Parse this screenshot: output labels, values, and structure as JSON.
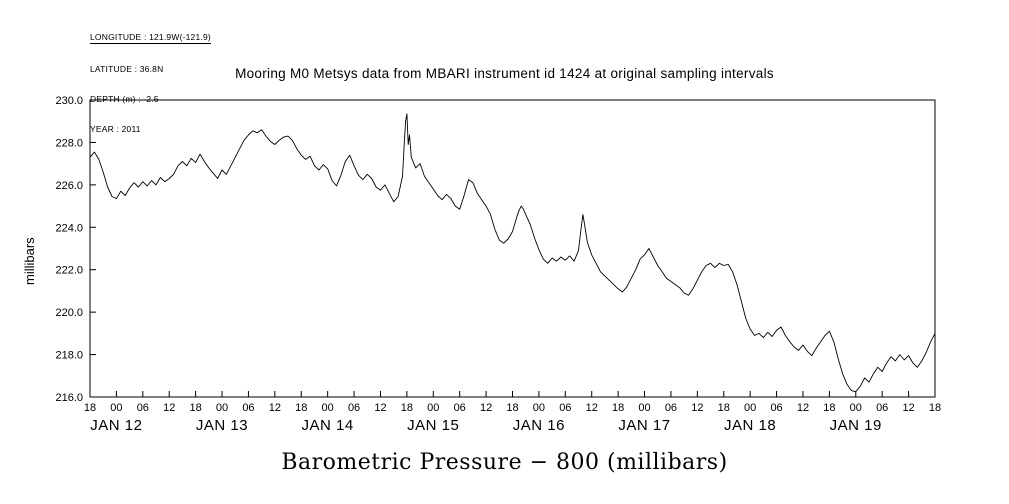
{
  "meta": {
    "longitude": "LONGITUDE : 121.9W(-121.9)",
    "latitude": "LATITUDE : 36.8N",
    "depth": "DEPTH (m) : -2.5",
    "year": "YEAR : 2011"
  },
  "chart_data": {
    "type": "line",
    "title": "Mooring M0 Metsys data from MBARI instrument id 1424 at original sampling intervals",
    "xlabel": "Barometric Pressure − 800 (millibars)",
    "ylabel": "millibars",
    "ylim": [
      216,
      230
    ],
    "xlim_hours": [
      0,
      192
    ],
    "grid": false,
    "legend": "none",
    "line_color": "#000000",
    "y_ticks": [
      230,
      228,
      226,
      224,
      222,
      220,
      218,
      216
    ],
    "y_tick_labels": [
      "230.0",
      "228.0",
      "226.0",
      "224.0",
      "222.0",
      "220.0",
      "218.0",
      "216.0"
    ],
    "x_tick_interval_hours": 6,
    "x_tick_labels": [
      "18",
      "00",
      "06",
      "12",
      "18",
      "00",
      "06",
      "12",
      "18",
      "00",
      "06",
      "12",
      "18",
      "00",
      "06",
      "12",
      "18",
      "00",
      "06",
      "12",
      "18",
      "00",
      "06",
      "12",
      "18",
      "00",
      "06",
      "12",
      "18",
      "00",
      "06",
      "12",
      "18"
    ],
    "day_labels": [
      {
        "label": "JAN 12",
        "hour": 6
      },
      {
        "label": "JAN 13",
        "hour": 30
      },
      {
        "label": "JAN 14",
        "hour": 54
      },
      {
        "label": "JAN 15",
        "hour": 78
      },
      {
        "label": "JAN 16",
        "hour": 102
      },
      {
        "label": "JAN 17",
        "hour": 126
      },
      {
        "label": "JAN 18",
        "hour": 150
      },
      {
        "label": "JAN 19",
        "hour": 174
      }
    ],
    "points": [
      [
        0,
        227.3
      ],
      [
        1,
        227.55
      ],
      [
        2,
        227.2
      ],
      [
        3,
        226.6
      ],
      [
        4,
        225.9
      ],
      [
        5,
        225.45
      ],
      [
        6,
        225.35
      ],
      [
        7,
        225.7
      ],
      [
        8,
        225.5
      ],
      [
        9,
        225.85
      ],
      [
        10,
        226.1
      ],
      [
        11,
        225.9
      ],
      [
        12,
        226.15
      ],
      [
        13,
        225.95
      ],
      [
        14,
        226.2
      ],
      [
        15,
        226.0
      ],
      [
        16,
        226.35
      ],
      [
        17,
        226.15
      ],
      [
        18,
        226.3
      ],
      [
        19,
        226.5
      ],
      [
        20,
        226.9
      ],
      [
        21,
        227.1
      ],
      [
        22,
        226.9
      ],
      [
        23,
        227.25
      ],
      [
        24,
        227.05
      ],
      [
        25,
        227.45
      ],
      [
        26,
        227.1
      ],
      [
        27,
        226.8
      ],
      [
        28,
        226.55
      ],
      [
        29,
        226.3
      ],
      [
        30,
        226.7
      ],
      [
        31,
        226.5
      ],
      [
        32,
        226.9
      ],
      [
        33,
        227.3
      ],
      [
        34,
        227.7
      ],
      [
        35,
        228.1
      ],
      [
        36,
        228.35
      ],
      [
        37,
        228.55
      ],
      [
        38,
        228.45
      ],
      [
        39,
        228.6
      ],
      [
        40,
        228.3
      ],
      [
        41,
        228.05
      ],
      [
        42,
        227.9
      ],
      [
        43,
        228.1
      ],
      [
        44,
        228.25
      ],
      [
        45,
        228.3
      ],
      [
        46,
        228.1
      ],
      [
        47,
        227.7
      ],
      [
        48,
        227.4
      ],
      [
        49,
        227.2
      ],
      [
        50,
        227.35
      ],
      [
        51,
        226.9
      ],
      [
        52,
        226.7
      ],
      [
        53,
        226.95
      ],
      [
        54,
        226.75
      ],
      [
        55,
        226.2
      ],
      [
        56,
        225.95
      ],
      [
        57,
        226.45
      ],
      [
        58,
        227.1
      ],
      [
        59,
        227.4
      ],
      [
        60,
        226.9
      ],
      [
        61,
        226.45
      ],
      [
        62,
        226.25
      ],
      [
        63,
        226.5
      ],
      [
        64,
        226.3
      ],
      [
        65,
        225.9
      ],
      [
        66,
        225.75
      ],
      [
        67,
        226.0
      ],
      [
        68,
        225.6
      ],
      [
        69,
        225.2
      ],
      [
        70,
        225.45
      ],
      [
        71,
        226.4
      ],
      [
        71.4,
        227.9
      ],
      [
        71.7,
        229.0
      ],
      [
        72,
        229.35
      ],
      [
        72.3,
        227.9
      ],
      [
        72.6,
        228.35
      ],
      [
        73,
        227.3
      ],
      [
        74,
        226.8
      ],
      [
        75,
        227.0
      ],
      [
        76,
        226.4
      ],
      [
        77,
        226.1
      ],
      [
        78,
        225.8
      ],
      [
        79,
        225.5
      ],
      [
        80,
        225.3
      ],
      [
        81,
        225.55
      ],
      [
        82,
        225.35
      ],
      [
        83,
        225.0
      ],
      [
        84,
        224.85
      ],
      [
        85,
        225.5
      ],
      [
        86,
        226.25
      ],
      [
        87,
        226.1
      ],
      [
        88,
        225.6
      ],
      [
        89,
        225.3
      ],
      [
        90,
        225.0
      ],
      [
        91,
        224.6
      ],
      [
        92,
        223.9
      ],
      [
        93,
        223.4
      ],
      [
        94,
        223.25
      ],
      [
        95,
        223.45
      ],
      [
        96,
        223.8
      ],
      [
        97,
        224.5
      ],
      [
        97.5,
        224.8
      ],
      [
        98,
        225.0
      ],
      [
        98.5,
        224.85
      ],
      [
        99,
        224.6
      ],
      [
        100,
        224.15
      ],
      [
        101,
        223.5
      ],
      [
        102,
        222.95
      ],
      [
        103,
        222.5
      ],
      [
        104,
        222.3
      ],
      [
        105,
        222.55
      ],
      [
        106,
        222.4
      ],
      [
        107,
        222.6
      ],
      [
        108,
        222.45
      ],
      [
        109,
        222.65
      ],
      [
        110,
        222.4
      ],
      [
        111,
        222.9
      ],
      [
        111.5,
        223.8
      ],
      [
        112,
        224.6
      ],
      [
        112.4,
        224.1
      ],
      [
        113,
        223.3
      ],
      [
        114,
        222.7
      ],
      [
        115,
        222.3
      ],
      [
        116,
        221.9
      ],
      [
        117,
        221.7
      ],
      [
        118,
        221.5
      ],
      [
        119,
        221.3
      ],
      [
        120,
        221.1
      ],
      [
        121,
        220.95
      ],
      [
        122,
        221.2
      ],
      [
        123,
        221.6
      ],
      [
        124,
        222.0
      ],
      [
        125,
        222.5
      ],
      [
        126,
        222.7
      ],
      [
        127,
        223.0
      ],
      [
        128,
        222.6
      ],
      [
        129,
        222.2
      ],
      [
        130,
        221.9
      ],
      [
        131,
        221.6
      ],
      [
        132,
        221.45
      ],
      [
        133,
        221.3
      ],
      [
        134,
        221.15
      ],
      [
        135,
        220.9
      ],
      [
        136,
        220.8
      ],
      [
        137,
        221.1
      ],
      [
        138,
        221.5
      ],
      [
        139,
        221.9
      ],
      [
        140,
        222.2
      ],
      [
        141,
        222.3
      ],
      [
        142,
        222.1
      ],
      [
        143,
        222.3
      ],
      [
        144,
        222.2
      ],
      [
        145,
        222.25
      ],
      [
        146,
        221.9
      ],
      [
        147,
        221.3
      ],
      [
        148,
        220.5
      ],
      [
        149,
        219.7
      ],
      [
        150,
        219.2
      ],
      [
        151,
        218.9
      ],
      [
        152,
        219.0
      ],
      [
        153,
        218.8
      ],
      [
        154,
        219.05
      ],
      [
        155,
        218.85
      ],
      [
        156,
        219.15
      ],
      [
        157,
        219.3
      ],
      [
        158,
        218.9
      ],
      [
        159,
        218.6
      ],
      [
        160,
        218.35
      ],
      [
        161,
        218.2
      ],
      [
        162,
        218.45
      ],
      [
        163,
        218.15
      ],
      [
        164,
        217.95
      ],
      [
        165,
        218.3
      ],
      [
        166,
        218.6
      ],
      [
        167,
        218.9
      ],
      [
        168,
        219.1
      ],
      [
        169,
        218.6
      ],
      [
        170,
        217.8
      ],
      [
        171,
        217.1
      ],
      [
        172,
        216.6
      ],
      [
        173,
        216.3
      ],
      [
        174,
        216.25
      ],
      [
        175,
        216.5
      ],
      [
        176,
        216.9
      ],
      [
        177,
        216.7
      ],
      [
        178,
        217.1
      ],
      [
        179,
        217.4
      ],
      [
        180,
        217.2
      ],
      [
        181,
        217.6
      ],
      [
        182,
        217.9
      ],
      [
        183,
        217.7
      ],
      [
        184,
        218.0
      ],
      [
        185,
        217.75
      ],
      [
        186,
        217.95
      ],
      [
        187,
        217.6
      ],
      [
        188,
        217.4
      ],
      [
        189,
        217.7
      ],
      [
        190,
        218.1
      ],
      [
        191,
        218.6
      ],
      [
        192,
        219.0
      ]
    ]
  }
}
